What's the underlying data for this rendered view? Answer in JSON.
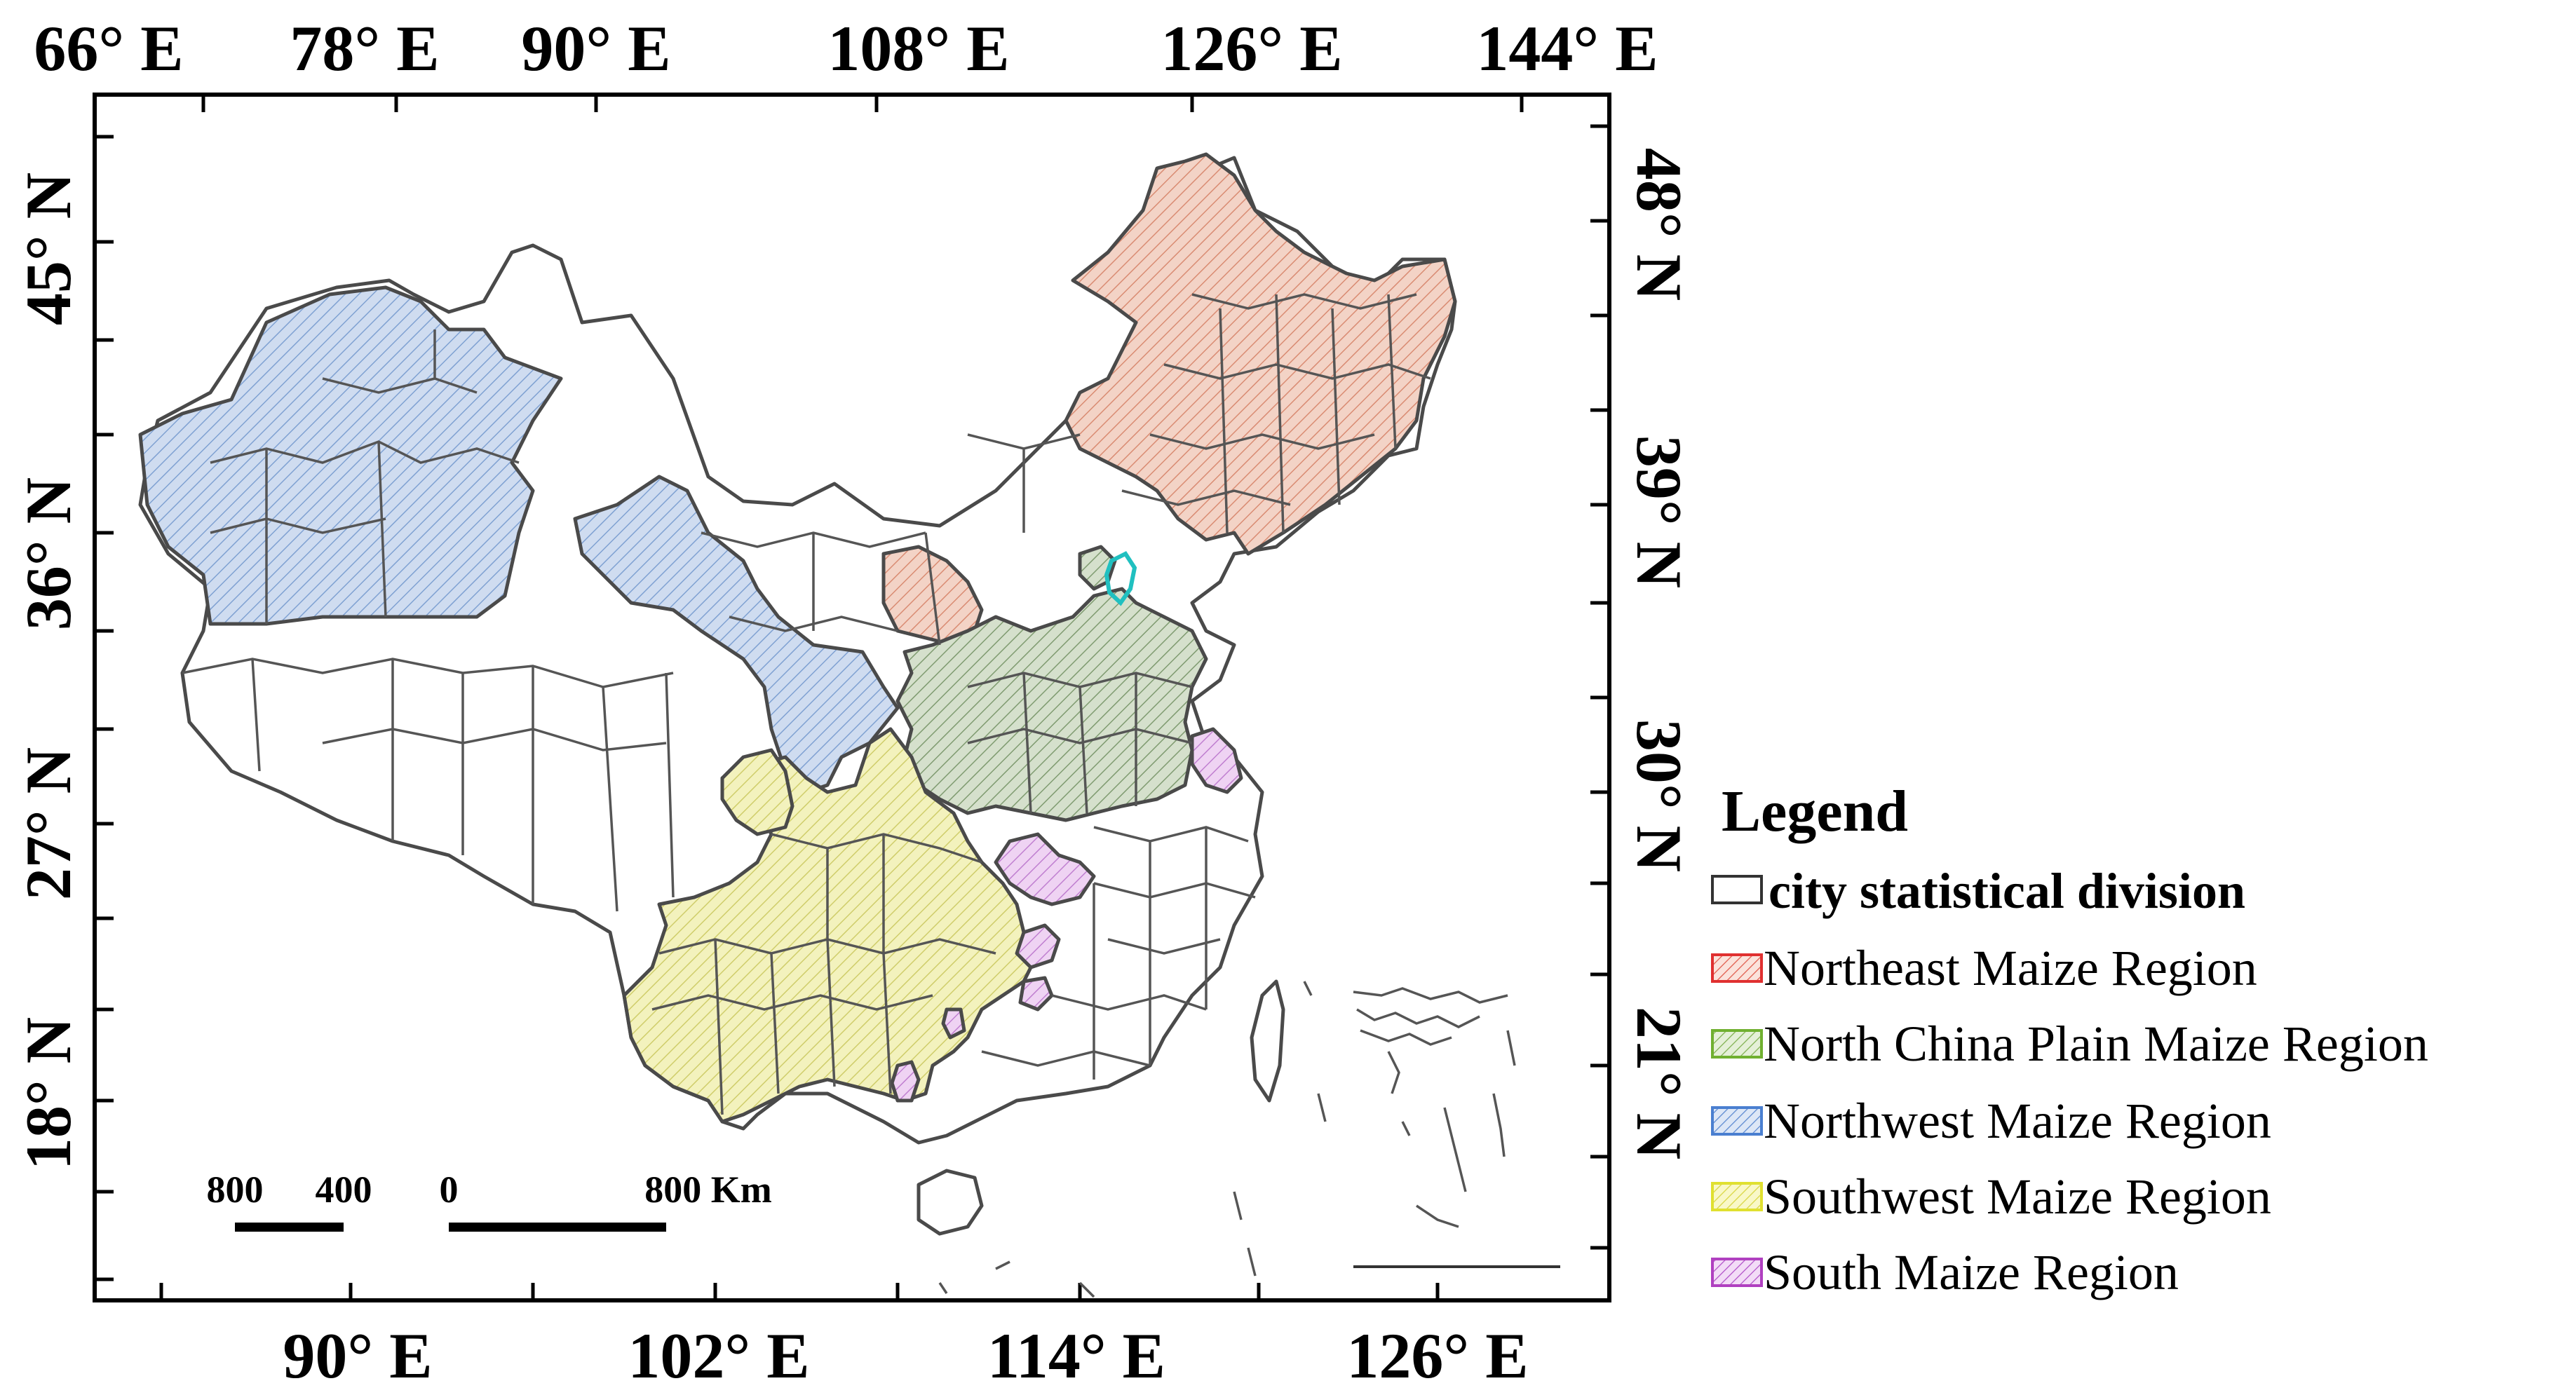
{
  "colors": {
    "northeast": "#e9b3a0",
    "north_china_plain": "#b9cbb0",
    "northwest": "#a9c2e0",
    "southwest": "#ecec9a",
    "south": "#e2b6ea",
    "unassigned": "#ffffff",
    "outline": "#4a4a4a",
    "legend_northeast_stroke": "#e03030",
    "legend_north_china_stroke": "#70b030",
    "legend_northwest_stroke": "#4a7fd0",
    "legend_southwest_stroke": "#e0e030",
    "legend_south_stroke": "#b040c0",
    "highlight_beijing": "#20c0c0"
  },
  "axes": {
    "top": [
      "66° E",
      "78° E",
      "90° E",
      "108° E",
      "126° E",
      "144° E"
    ],
    "bottom": [
      "90° E",
      "102° E",
      "114° E",
      "126° E"
    ],
    "left": [
      "45° N",
      "36° N",
      "27° N",
      "18° N"
    ],
    "right": [
      "48° N",
      "39° N",
      "30° N",
      "21° N"
    ]
  },
  "legend": {
    "title": "Legend",
    "items": [
      {
        "label": "city statistical division",
        "bold": true
      },
      {
        "label": "Northeast Maize Region",
        "bold": false
      },
      {
        "label": "North China Plain Maize Region",
        "bold": false
      },
      {
        "label": "Northwest Maize Region",
        "bold": false
      },
      {
        "label": "Southwest Maize Region",
        "bold": false
      },
      {
        "label": "South Maize Region",
        "bold": false
      }
    ]
  },
  "scale_bar": {
    "ticks": [
      "800",
      "400",
      "0",
      "800 Km"
    ]
  }
}
